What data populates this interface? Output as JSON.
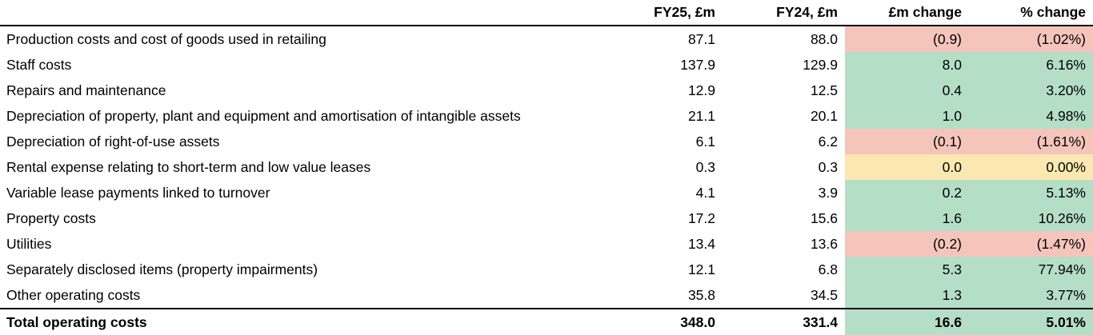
{
  "table": {
    "columns": {
      "label": "",
      "fy25": "FY25, £m",
      "fy24": "FY24, £m",
      "change": "£m change",
      "pct": "% change"
    },
    "status_colors": {
      "positive": "#b5dec6",
      "negative": "#f5c5bc",
      "zero": "#fae8b0"
    },
    "rows": [
      {
        "label": "Production costs and cost of goods used in retailing",
        "fy25": "87.1",
        "fy24": "88.0",
        "change": "(0.9)",
        "pct": "(1.02%)",
        "status": "negative"
      },
      {
        "label": "Staff costs",
        "fy25": "137.9",
        "fy24": "129.9",
        "change": "8.0",
        "pct": "6.16%",
        "status": "positive"
      },
      {
        "label": "Repairs and maintenance",
        "fy25": "12.9",
        "fy24": "12.5",
        "change": "0.4",
        "pct": "3.20%",
        "status": "positive"
      },
      {
        "label": "Depreciation of property, plant and equipment and amortisation of intangible assets",
        "fy25": "21.1",
        "fy24": "20.1",
        "change": "1.0",
        "pct": "4.98%",
        "status": "positive"
      },
      {
        "label": "Depreciation of right-of-use assets",
        "fy25": "6.1",
        "fy24": "6.2",
        "change": "(0.1)",
        "pct": "(1.61%)",
        "status": "negative"
      },
      {
        "label": "Rental expense relating to short-term and low value leases",
        "fy25": "0.3",
        "fy24": "0.3",
        "change": "0.0",
        "pct": "0.00%",
        "status": "zero"
      },
      {
        "label": "Variable lease payments linked to turnover",
        "fy25": "4.1",
        "fy24": "3.9",
        "change": "0.2",
        "pct": "5.13%",
        "status": "positive"
      },
      {
        "label": "Property costs",
        "fy25": "17.2",
        "fy24": "15.6",
        "change": "1.6",
        "pct": "10.26%",
        "status": "positive"
      },
      {
        "label": "Utilities",
        "fy25": "13.4",
        "fy24": "13.6",
        "change": "(0.2)",
        "pct": "(1.47%)",
        "status": "negative"
      },
      {
        "label": "Separately disclosed items (property impairments)",
        "fy25": "12.1",
        "fy24": "6.8",
        "change": "5.3",
        "pct": "77.94%",
        "status": "positive"
      },
      {
        "label": "Other operating costs",
        "fy25": "35.8",
        "fy24": "34.5",
        "change": "1.3",
        "pct": "3.77%",
        "status": "positive"
      }
    ],
    "total": {
      "label": "Total operating costs",
      "fy25": "348.0",
      "fy24": "331.4",
      "change": "16.6",
      "pct": "5.01%",
      "status": "positive"
    }
  }
}
